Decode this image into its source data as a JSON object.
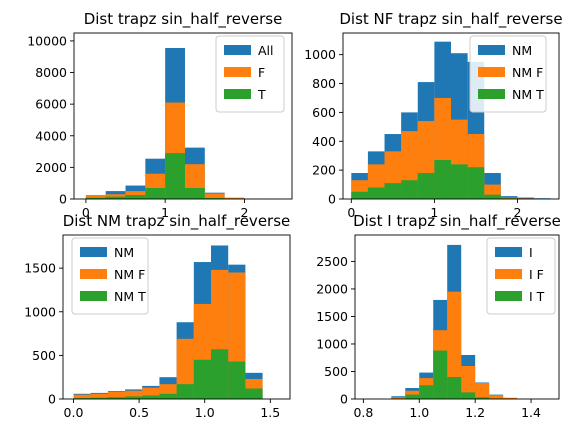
{
  "chart_data": [
    {
      "type": "bar",
      "title": "Dist trapz sin_half_reverse",
      "xlim": [
        -0.15,
        2.6
      ],
      "ylim": [
        0,
        10500
      ],
      "xticks": [
        0,
        1,
        2
      ],
      "xtick_labels": [
        "0",
        "1",
        "2"
      ],
      "yticks": [
        0,
        2000,
        4000,
        6000,
        8000,
        10000
      ],
      "ytick_labels": [
        "0",
        "2000",
        "4000",
        "6000",
        "8000",
        "10000"
      ],
      "legend_position": "upper-right",
      "bin_edges": [
        0,
        0.25,
        0.5,
        0.75,
        1.0,
        1.25,
        1.5,
        1.75,
        2.0,
        2.25,
        2.5
      ],
      "series": [
        {
          "name": "All",
          "color": "#1f77b4",
          "values": [
            250,
            500,
            850,
            2550,
            9550,
            3250,
            400,
            80,
            20,
            10
          ]
        },
        {
          "name": "F",
          "color": "#ff7f0e",
          "values": [
            250,
            300,
            500,
            1600,
            6100,
            2200,
            350,
            60,
            10,
            5
          ]
        },
        {
          "name": "T",
          "color": "#2ca02c",
          "values": [
            80,
            150,
            250,
            700,
            2900,
            700,
            60,
            10,
            5,
            0
          ]
        }
      ]
    },
    {
      "type": "bar",
      "title": "Dist NF trapz sin_half_reverse",
      "xlim": [
        -0.1,
        2.5
      ],
      "ylim": [
        0,
        1150
      ],
      "xticks": [
        0,
        1,
        2
      ],
      "xtick_labels": [
        "0",
        "1",
        "2"
      ],
      "yticks": [
        0,
        200,
        400,
        600,
        800,
        1000
      ],
      "ytick_labels": [
        "0",
        "200",
        "400",
        "600",
        "800",
        "1000"
      ],
      "legend_position": "upper-right",
      "bin_edges": [
        0,
        0.2,
        0.4,
        0.6,
        0.8,
        1.0,
        1.2,
        1.4,
        1.6,
        1.8,
        2.0,
        2.2,
        2.4
      ],
      "series": [
        {
          "name": "NM",
          "color": "#1f77b4",
          "values": [
            180,
            330,
            450,
            600,
            810,
            1090,
            1010,
            950,
            180,
            20,
            10,
            5
          ]
        },
        {
          "name": "NM F",
          "color": "#ff7f0e",
          "values": [
            130,
            240,
            330,
            470,
            540,
            700,
            550,
            450,
            100,
            10,
            5,
            0
          ]
        },
        {
          "name": "NM T",
          "color": "#2ca02c",
          "values": [
            50,
            80,
            110,
            130,
            180,
            270,
            240,
            220,
            30,
            5,
            0,
            0
          ]
        }
      ]
    },
    {
      "type": "bar",
      "title": "Dist NM trapz sin_half_reverse",
      "xlim": [
        -0.08,
        1.65
      ],
      "ylim": [
        0,
        1880
      ],
      "xticks": [
        0,
        0.5,
        1.0,
        1.5
      ],
      "xtick_labels": [
        "0.0",
        "0.5",
        "1.0",
        "1.5"
      ],
      "yticks": [
        0,
        500,
        1000,
        1500
      ],
      "ytick_labels": [
        "0",
        "500",
        "1000",
        "1500"
      ],
      "legend_position": "upper-left",
      "bin_edges": [
        0,
        0.131,
        0.262,
        0.393,
        0.524,
        0.655,
        0.786,
        0.917,
        1.048,
        1.179,
        1.31,
        1.441,
        1.572
      ],
      "series": [
        {
          "name": "NM",
          "color": "#1f77b4",
          "values": [
            60,
            70,
            90,
            110,
            150,
            250,
            880,
            1570,
            1760,
            1540,
            300,
            0
          ]
        },
        {
          "name": "NM F",
          "color": "#ff7f0e",
          "values": [
            50,
            60,
            80,
            95,
            130,
            170,
            690,
            1090,
            1480,
            1450,
            230,
            0
          ]
        },
        {
          "name": "NM T",
          "color": "#2ca02c",
          "values": [
            10,
            15,
            20,
            30,
            40,
            60,
            170,
            450,
            570,
            430,
            120,
            0
          ]
        }
      ]
    },
    {
      "type": "bar",
      "title": "Dist I trapz sin_half_reverse",
      "xlim": [
        0.77,
        1.5
      ],
      "ylim": [
        0,
        2980
      ],
      "xticks": [
        0.8,
        1.0,
        1.2,
        1.4
      ],
      "xtick_labels": [
        "0.8",
        "1.0",
        "1.2",
        "1.4"
      ],
      "yticks": [
        0,
        500,
        1000,
        1500,
        2000,
        2500
      ],
      "ytick_labels": [
        "0",
        "500",
        "1000",
        "1500",
        "2000",
        "2500"
      ],
      "legend_position": "upper-right",
      "bin_edges": [
        0.9,
        0.95,
        1.0,
        1.05,
        1.1,
        1.15,
        1.2,
        1.25,
        1.3,
        1.35
      ],
      "series": [
        {
          "name": "I",
          "color": "#1f77b4",
          "values": [
            50,
            200,
            480,
            1800,
            2800,
            800,
            300,
            80,
            20
          ]
        },
        {
          "name": "I F",
          "color": "#ff7f0e",
          "values": [
            30,
            150,
            380,
            1250,
            1950,
            600,
            290,
            70,
            20
          ]
        },
        {
          "name": "I T",
          "color": "#2ca02c",
          "values": [
            10,
            80,
            250,
            880,
            400,
            120,
            30,
            10,
            5
          ]
        }
      ]
    }
  ]
}
